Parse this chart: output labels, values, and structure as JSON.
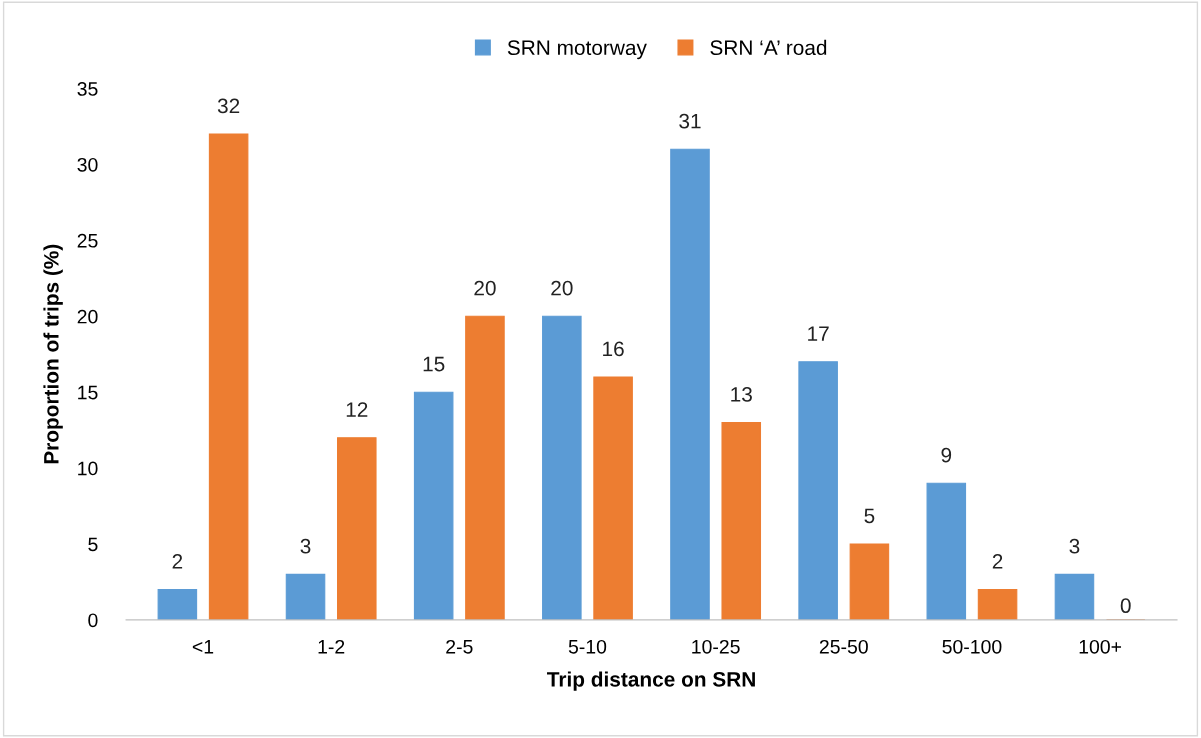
{
  "chart_data": {
    "type": "bar",
    "xlabel": "Trip distance on SRN",
    "ylabel": "Proportion of trips (%)",
    "categories": [
      "<1",
      "1-2",
      "2-5",
      "5-10",
      "10-25",
      "25-50",
      "50-100",
      "100+"
    ],
    "series": [
      {
        "name": "SRN motorway",
        "color": "#5b9bd5",
        "values": [
          2,
          3,
          15,
          20,
          31,
          17,
          9,
          3
        ]
      },
      {
        "name": "SRN ‘A’ road",
        "color": "#ed7d31",
        "values": [
          32,
          12,
          20,
          16,
          13,
          5,
          2,
          0
        ]
      }
    ],
    "ylim": [
      0,
      35
    ],
    "yticks": [
      0,
      5,
      10,
      15,
      20,
      25,
      30,
      35
    ],
    "data_labels": true,
    "legend": "top",
    "grid": false
  }
}
